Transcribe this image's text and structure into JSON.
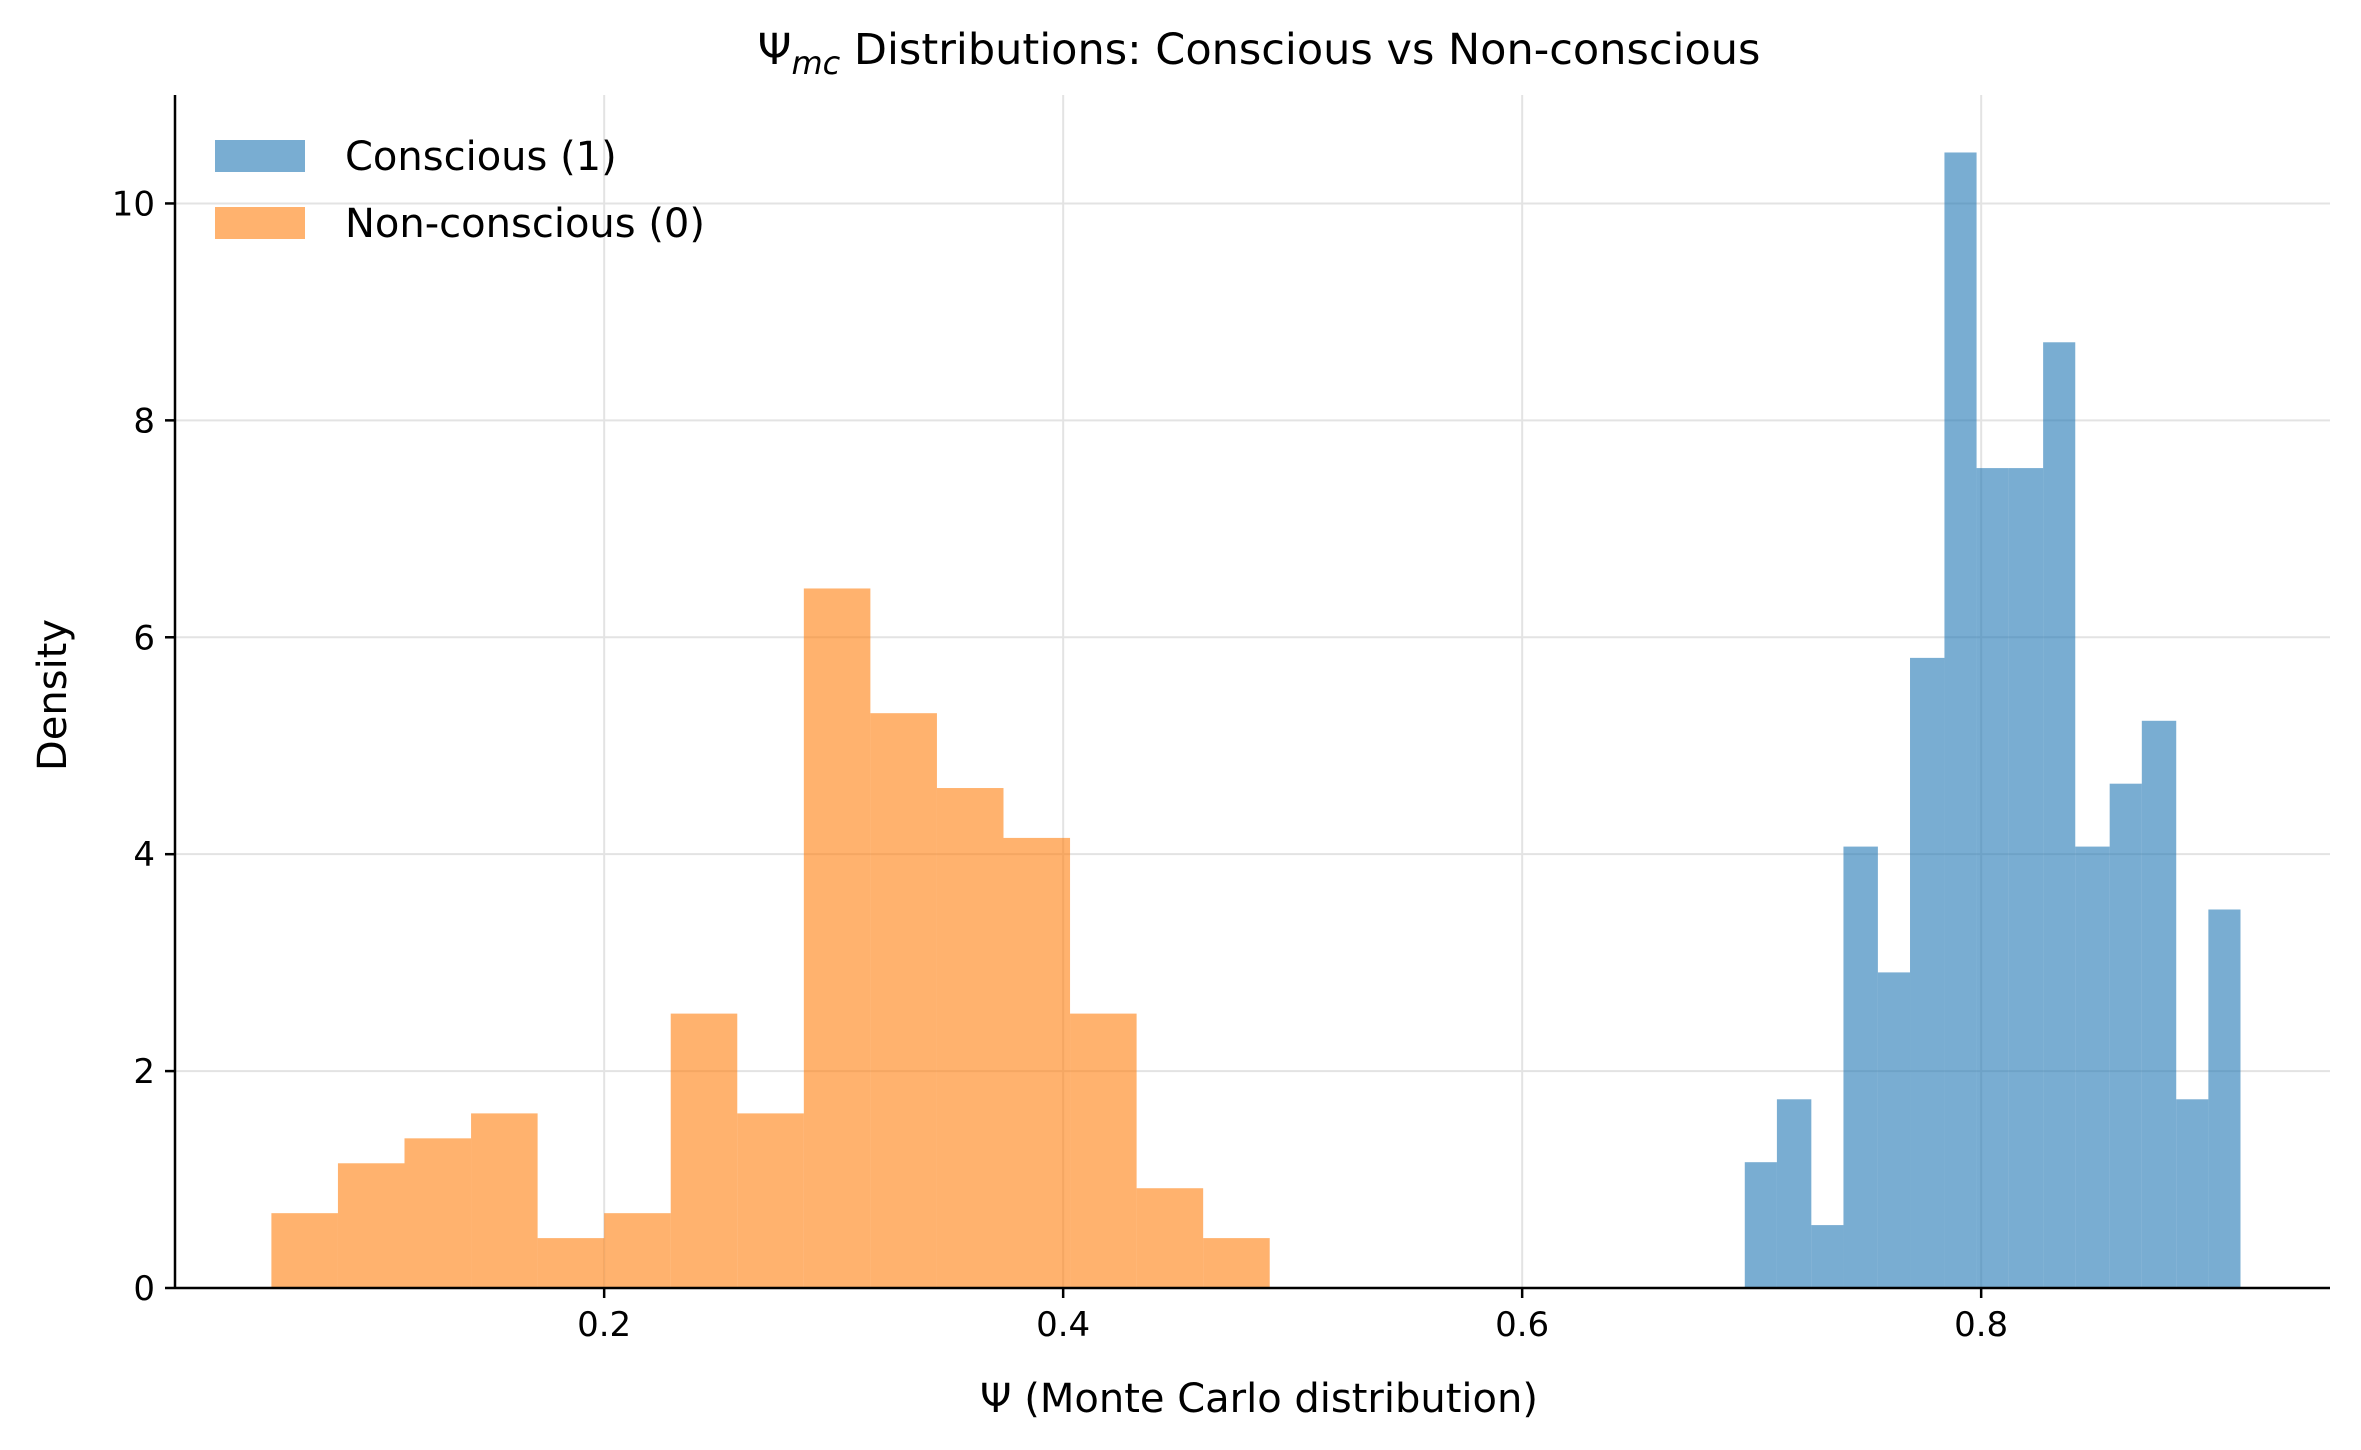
{
  "chart_data": {
    "type": "histogram",
    "title": {
      "symbol": "Ψ",
      "subscript": "mc",
      "rest": " Distributions: Conscious vs Non-conscious"
    },
    "xlabel": "Ψ (Monte Carlo distribution)",
    "ylabel": "Density",
    "xlim": [
      0.013,
      0.952
    ],
    "ylim": [
      0,
      11.0
    ],
    "xticks": [
      0.2,
      0.4,
      0.6,
      0.8
    ],
    "xtick_labels": [
      "0.2",
      "0.4",
      "0.6",
      "0.8"
    ],
    "yticks": [
      0,
      2,
      4,
      6,
      8,
      10
    ],
    "ytick_labels": [
      "0",
      "2",
      "4",
      "6",
      "8",
      "10"
    ],
    "grid": true,
    "legend_position": "top-left",
    "series": [
      {
        "name": "Conscious (1)",
        "color": "#1f77b4",
        "opacity": 0.6,
        "bins": [
          {
            "x0": 0.697,
            "x1": 0.711,
            "value": 1.16
          },
          {
            "x0": 0.711,
            "x1": 0.726,
            "value": 1.74
          },
          {
            "x0": 0.726,
            "x1": 0.74,
            "value": 0.58
          },
          {
            "x0": 0.74,
            "x1": 0.755,
            "value": 4.07
          },
          {
            "x0": 0.755,
            "x1": 0.769,
            "value": 2.91
          },
          {
            "x0": 0.769,
            "x1": 0.784,
            "value": 5.81
          },
          {
            "x0": 0.784,
            "x1": 0.798,
            "value": 10.47
          },
          {
            "x0": 0.798,
            "x1": 0.812,
            "value": 7.56
          },
          {
            "x0": 0.812,
            "x1": 0.827,
            "value": 7.56
          },
          {
            "x0": 0.827,
            "x1": 0.841,
            "value": 8.72
          },
          {
            "x0": 0.841,
            "x1": 0.856,
            "value": 4.07
          },
          {
            "x0": 0.856,
            "x1": 0.87,
            "value": 4.65
          },
          {
            "x0": 0.87,
            "x1": 0.885,
            "value": 5.23
          },
          {
            "x0": 0.885,
            "x1": 0.899,
            "value": 1.74
          },
          {
            "x0": 0.899,
            "x1": 0.913,
            "value": 3.49
          }
        ]
      },
      {
        "name": "Non-conscious (0)",
        "color": "#ff7f0e",
        "opacity": 0.6,
        "bins": [
          {
            "x0": 0.055,
            "x1": 0.084,
            "value": 0.69
          },
          {
            "x0": 0.084,
            "x1": 0.113,
            "value": 1.15
          },
          {
            "x0": 0.113,
            "x1": 0.142,
            "value": 1.38
          },
          {
            "x0": 0.142,
            "x1": 0.171,
            "value": 1.61
          },
          {
            "x0": 0.171,
            "x1": 0.2,
            "value": 0.46
          },
          {
            "x0": 0.2,
            "x1": 0.229,
            "value": 0.69
          },
          {
            "x0": 0.229,
            "x1": 0.258,
            "value": 2.53
          },
          {
            "x0": 0.258,
            "x1": 0.287,
            "value": 1.61
          },
          {
            "x0": 0.287,
            "x1": 0.316,
            "value": 6.45
          },
          {
            "x0": 0.316,
            "x1": 0.345,
            "value": 5.3
          },
          {
            "x0": 0.345,
            "x1": 0.374,
            "value": 4.61
          },
          {
            "x0": 0.374,
            "x1": 0.403,
            "value": 4.15
          },
          {
            "x0": 0.403,
            "x1": 0.432,
            "value": 2.53
          },
          {
            "x0": 0.432,
            "x1": 0.461,
            "value": 0.92
          },
          {
            "x0": 0.461,
            "x1": 0.49,
            "value": 0.46
          }
        ]
      }
    ]
  }
}
